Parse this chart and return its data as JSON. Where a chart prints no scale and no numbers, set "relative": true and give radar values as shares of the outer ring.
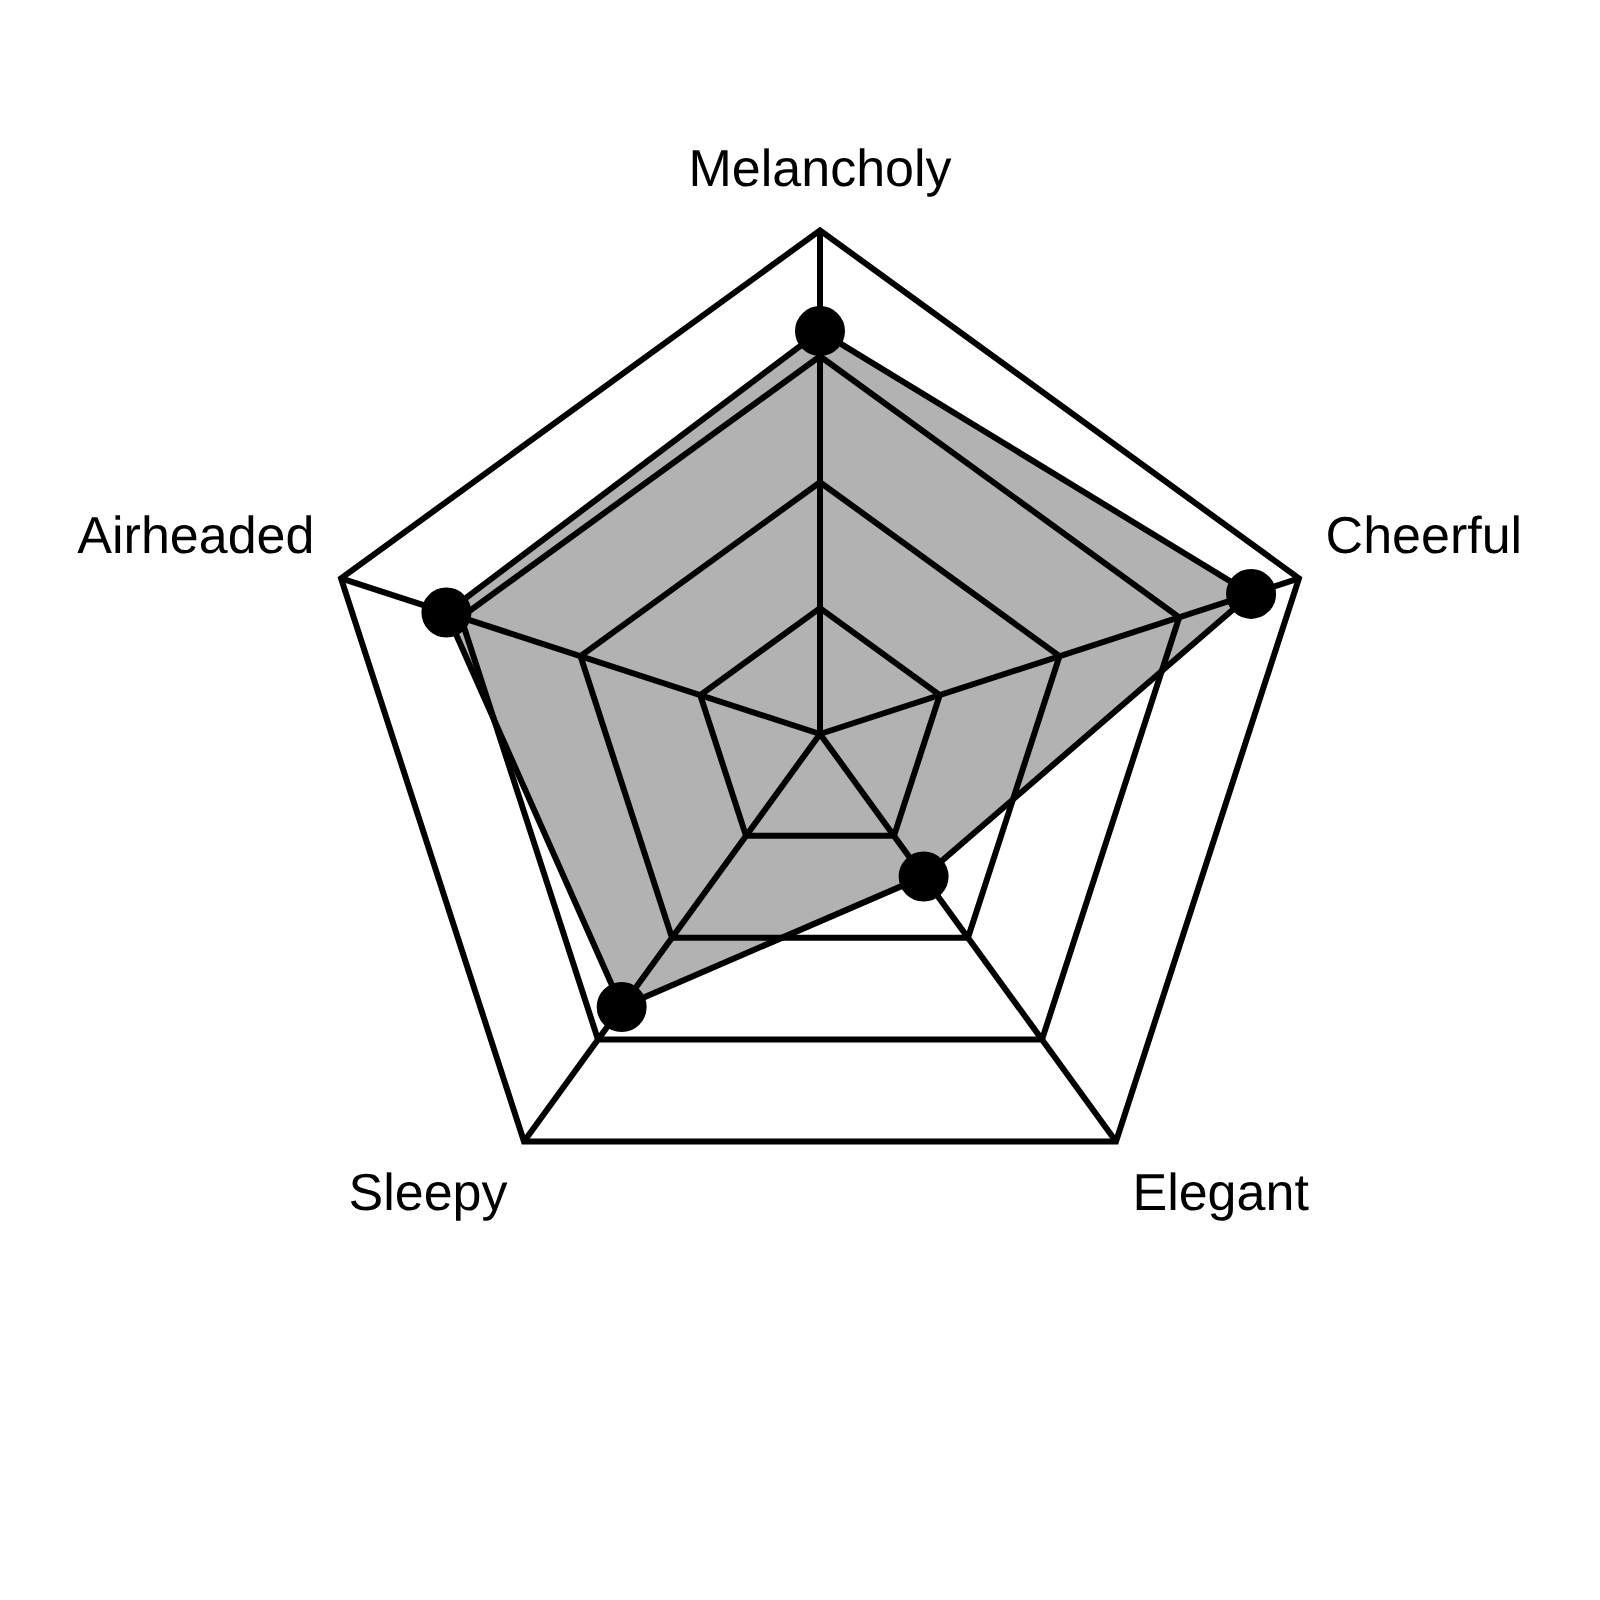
{
  "chart_data": {
    "type": "radar",
    "relative": true,
    "grid": true,
    "legend": false,
    "marker": "circle",
    "categories": [
      "Melancholy",
      "Cheerful",
      "Elegant",
      "Sleepy",
      "Airheaded"
    ],
    "series": [
      {
        "color": "#000000",
        "values": [
          0.8,
          0.9,
          0.35,
          0.67,
          0.78
        ]
      }
    ]
  }
}
